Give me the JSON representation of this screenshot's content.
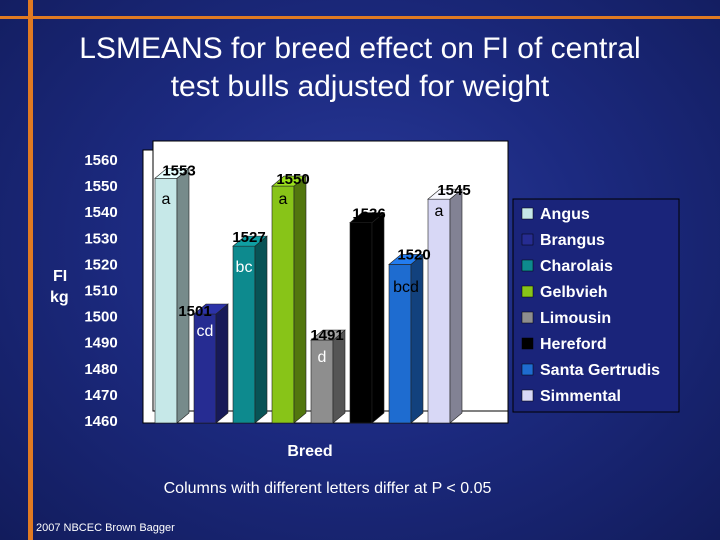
{
  "slide": {
    "title_line1": "LSMEANS for breed effect on FI of central",
    "title_line2": "test bulls adjusted for weight",
    "footnote": "Columns with different letters differ at P < 0.05",
    "credit": "2007 NBCEC Brown Bagger"
  },
  "chart_data": {
    "type": "bar",
    "style": "3d-column",
    "xlabel": "Breed",
    "ylabel_line1": "FI",
    "ylabel_line2": "kg",
    "ylim": [
      1460,
      1560
    ],
    "yticks": [
      1560,
      1550,
      1540,
      1530,
      1520,
      1510,
      1500,
      1490,
      1480,
      1470,
      1460
    ],
    "grid": false,
    "legend_position": "right",
    "categories": [
      "Angus",
      "Brangus",
      "Charolais",
      "Gelbvieh",
      "Limousin",
      "Hereford",
      "Santa Gertrudis",
      "Simmental"
    ],
    "values": [
      1553,
      1501,
      1527,
      1550,
      1491,
      1536,
      1520,
      1545
    ],
    "value_labels": [
      "1553",
      "1501",
      "1527",
      "1550",
      "1491",
      "1536",
      "1520",
      "1545"
    ],
    "letters": [
      "a",
      "cd",
      "bc",
      "a",
      "d",
      "",
      "bcd",
      "a"
    ],
    "colors": [
      "#c6e8e8",
      "#262c92",
      "#0d8a8e",
      "#88c418",
      "#8e8e8e",
      "#000000",
      "#1e6cd0",
      "#d8d8f6"
    ]
  }
}
